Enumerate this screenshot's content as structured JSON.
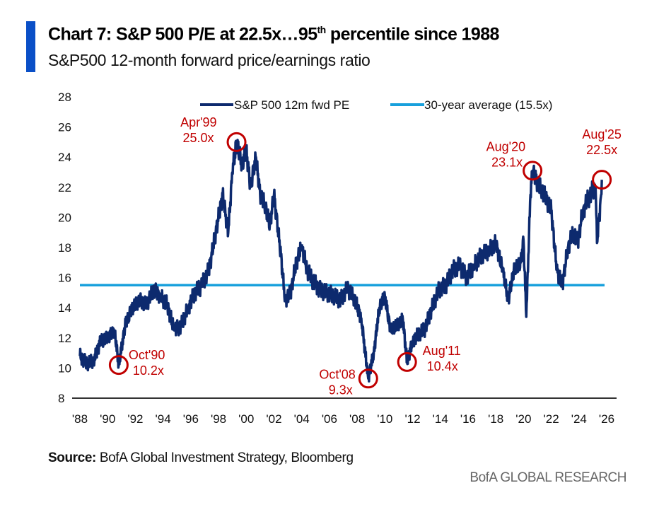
{
  "header": {
    "title_main": "Chart 7: S&P 500 P/E at 22.5x…95",
    "title_sup": "th",
    "title_end": " percentile since 1988",
    "subtitle": "S&P500 12-month forward price/earnings ratio"
  },
  "footer": {
    "source_label": "Source:",
    "source_text": " BofA Global Investment Strategy, Bloomberg",
    "brand": "BofA GLOBAL RESEARCH"
  },
  "colors": {
    "series": "#0d2a6e",
    "average": "#18a0dc",
    "annotation": "#c00000",
    "accent": "#0a4fc7"
  },
  "chart_data": {
    "type": "line",
    "title": "Chart 7: S&P 500 P/E at 22.5x…95th percentile since 1988",
    "xlabel": "",
    "ylabel": "",
    "xlim": [
      1988,
      2026
    ],
    "ylim": [
      8,
      28
    ],
    "yticks": [
      "8",
      "10",
      "12",
      "14",
      "16",
      "18",
      "20",
      "22",
      "24",
      "26",
      "28"
    ],
    "xticks": [
      "'88",
      "'90",
      "'92",
      "'94",
      "'96",
      "'98",
      "'00",
      "'02",
      "'04",
      "'06",
      "'08",
      "'10",
      "'12",
      "'14",
      "'16",
      "'18",
      "'20",
      "'22",
      "'24",
      "'26"
    ],
    "legend": {
      "placement": "top",
      "entries": [
        "S&P 500 12m fwd PE",
        "30-year average (15.5x)"
      ]
    },
    "average": 15.5,
    "series": [
      {
        "name": "S&P 500 12m fwd PE",
        "x": [
          1988.0,
          1988.5,
          1989.0,
          1989.5,
          1990.0,
          1990.5,
          1990.8,
          1991.3,
          1991.8,
          1992.3,
          1992.8,
          1993.3,
          1993.8,
          1994.3,
          1994.8,
          1995.3,
          1995.8,
          1996.3,
          1996.8,
          1997.3,
          1997.8,
          1998.3,
          1998.7,
          1999.0,
          1999.3,
          1999.7,
          2000.0,
          2000.3,
          2000.7,
          2001.0,
          2001.3,
          2001.7,
          2002.0,
          2002.5,
          2002.8,
          2003.2,
          2003.6,
          2004.0,
          2004.4,
          2004.8,
          2005.3,
          2005.8,
          2006.3,
          2006.8,
          2007.3,
          2007.8,
          2008.3,
          2008.8,
          2009.2,
          2009.6,
          2010.0,
          2010.4,
          2010.8,
          2011.3,
          2011.6,
          2012.0,
          2012.5,
          2012.9,
          2013.4,
          2013.9,
          2014.4,
          2014.9,
          2015.4,
          2015.9,
          2016.4,
          2017.0,
          2017.5,
          2018.0,
          2018.5,
          2018.9,
          2019.3,
          2019.8,
          2020.0,
          2020.2,
          2020.5,
          2020.65,
          2021.0,
          2021.5,
          2022.0,
          2022.4,
          2022.8,
          2023.2,
          2023.6,
          2023.9,
          2024.3,
          2024.8,
          2025.2,
          2025.3,
          2025.6,
          2025.65
        ],
        "y": [
          10.8,
          10.3,
          10.5,
          11.8,
          12.0,
          12.5,
          10.2,
          13.0,
          14.0,
          14.5,
          14.2,
          15.2,
          14.8,
          14.2,
          12.5,
          12.8,
          14.0,
          15.0,
          15.5,
          16.5,
          19.0,
          21.5,
          19.0,
          23.0,
          25.0,
          23.5,
          24.5,
          22.0,
          24.0,
          21.5,
          21.0,
          19.5,
          21.5,
          17.5,
          14.5,
          15.0,
          17.0,
          18.0,
          16.5,
          15.8,
          15.2,
          15.0,
          14.8,
          14.5,
          15.3,
          14.6,
          13.3,
          9.3,
          11.0,
          14.0,
          14.8,
          12.5,
          12.8,
          13.2,
          10.4,
          11.8,
          12.3,
          12.6,
          14.0,
          15.2,
          15.5,
          16.5,
          16.8,
          16.0,
          16.8,
          17.5,
          17.8,
          18.3,
          16.5,
          14.5,
          16.5,
          17.0,
          18.5,
          13.4,
          21.5,
          23.1,
          22.3,
          21.5,
          20.5,
          16.5,
          15.5,
          18.0,
          19.0,
          18.3,
          20.5,
          21.5,
          22.0,
          18.3,
          21.5,
          22.5
        ]
      }
    ],
    "annotations": [
      {
        "date": "Oct'90",
        "label": "10.2x",
        "x": 1990.8,
        "y": 10.2
      },
      {
        "date": "Apr'99",
        "label": "25.0x",
        "x": 1999.3,
        "y": 25.0
      },
      {
        "date": "Oct'08",
        "label": "9.3x",
        "x": 2008.8,
        "y": 9.3
      },
      {
        "date": "Aug'11",
        "label": "10.4x",
        "x": 2011.6,
        "y": 10.4
      },
      {
        "date": "Aug'20",
        "label": "23.1x",
        "x": 2020.65,
        "y": 23.1
      },
      {
        "date": "Aug'25",
        "label": "22.5x",
        "x": 2025.65,
        "y": 22.5
      }
    ]
  }
}
